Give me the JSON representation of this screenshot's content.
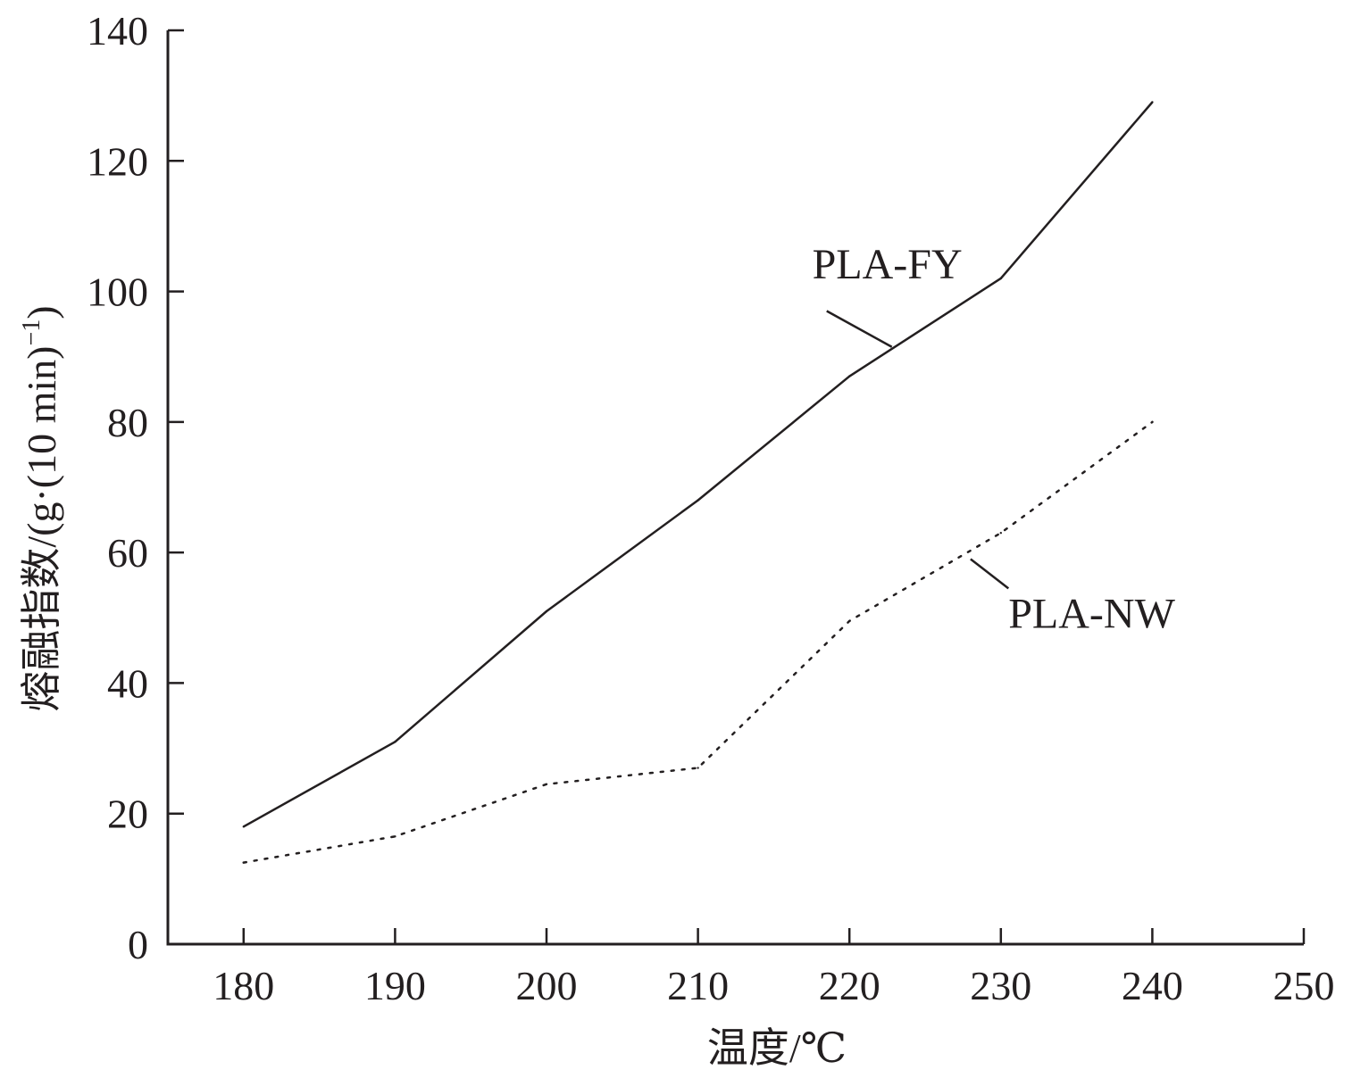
{
  "chart_data": {
    "type": "line",
    "xlabel": "温度/℃",
    "ylabel_main": "熔融指数/(g·(10 min)",
    "ylabel_sup": "−1",
    "ylabel_close": ")",
    "xlim": [
      175,
      250
    ],
    "ylim": [
      0,
      140
    ],
    "x_ticks": [
      180,
      190,
      200,
      210,
      220,
      230,
      240,
      250
    ],
    "y_ticks": [
      0,
      20,
      40,
      60,
      80,
      100,
      120,
      140
    ],
    "grid": false,
    "x": [
      180,
      190,
      200,
      210,
      220,
      230,
      240
    ],
    "series": [
      {
        "name": "PLA-FY",
        "line_style": "solid",
        "values": [
          18,
          31,
          51,
          68,
          87,
          102,
          129
        ]
      },
      {
        "name": "PLA-NW",
        "line_style": "dotted",
        "values": [
          12.5,
          16.5,
          24.5,
          27,
          49.5,
          63,
          80
        ]
      }
    ],
    "colors": {
      "line": "#231f20",
      "axis": "#231f20"
    }
  }
}
